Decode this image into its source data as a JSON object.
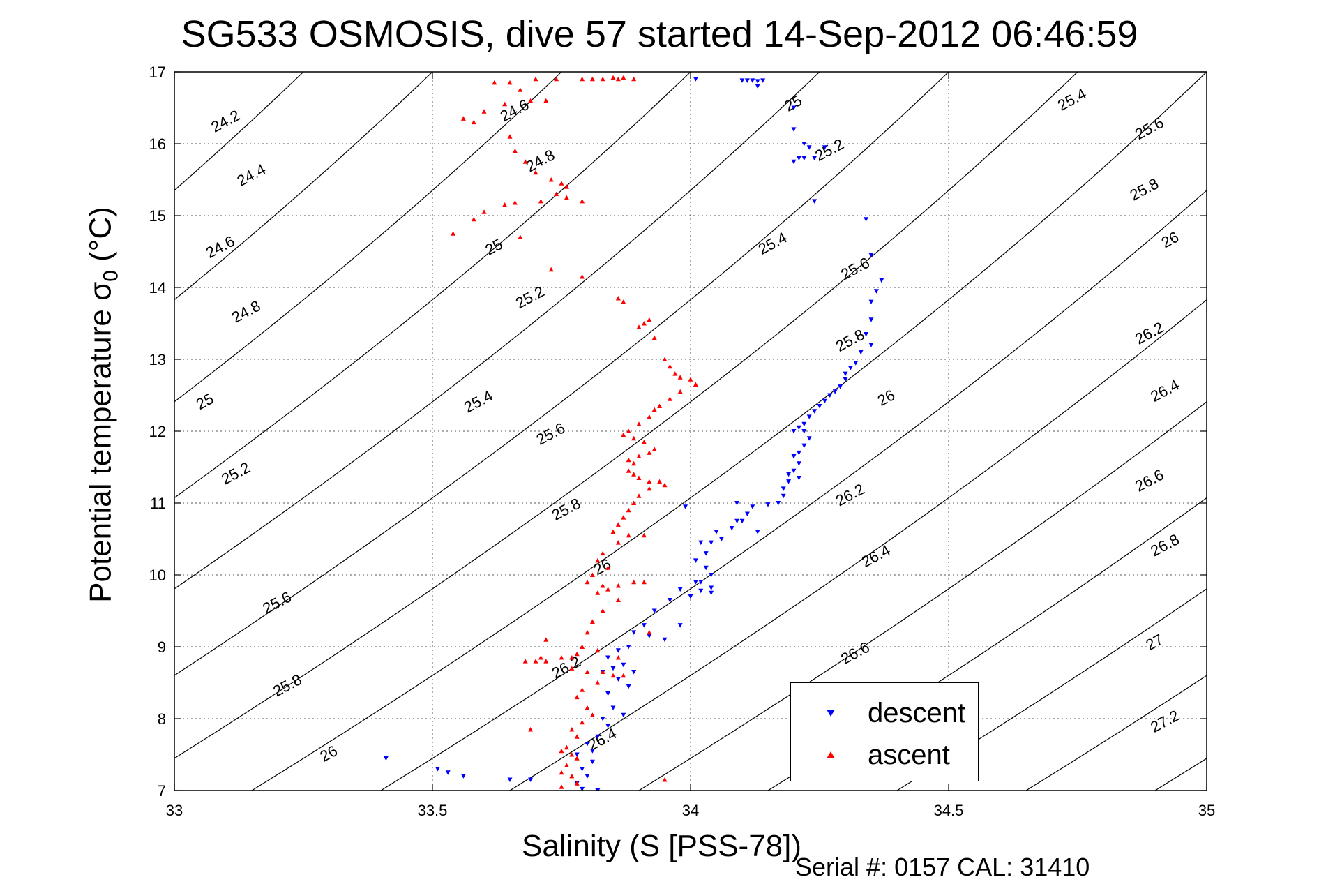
{
  "chart_data": {
    "type": "scatter",
    "title": "SG533 OSMOSIS, dive 57 started 14-Sep-2012 06:46:59",
    "xlabel": "Salinity (S [PSS-78])",
    "ylabel_main": "Potential temperature ",
    "ylabel_sym": "σ",
    "ylabel_sub": "0",
    "ylabel_unit": " (°C)",
    "footer": "Serial #: 0157  CAL: 31410",
    "xlim": [
      33,
      35
    ],
    "ylim": [
      7,
      17
    ],
    "x_ticks": [
      "33",
      "33.5",
      "34",
      "34.5",
      "35"
    ],
    "y_ticks": [
      "7",
      "8",
      "9",
      "10",
      "11",
      "12",
      "13",
      "14",
      "15",
      "16",
      "17"
    ],
    "grid": true,
    "legend_position": "bottom-right",
    "density_contours": {
      "levels": [
        24.2,
        24.4,
        24.6,
        24.8,
        25.0,
        25.2,
        25.4,
        25.6,
        25.8,
        26.0,
        26.2,
        26.4,
        26.6,
        26.8,
        27.0,
        27.2
      ],
      "labels": [
        {
          "text": "24.2",
          "s": 33.1,
          "t": 16.3
        },
        {
          "text": "24.4",
          "s": 33.15,
          "t": 15.55
        },
        {
          "text": "24.6",
          "s": 33.09,
          "t": 14.55
        },
        {
          "text": "24.8",
          "s": 33.14,
          "t": 13.65
        },
        {
          "text": "25",
          "s": 33.06,
          "t": 12.4
        },
        {
          "text": "25.2",
          "s": 33.12,
          "t": 11.4
        },
        {
          "text": "25.6",
          "s": 33.2,
          "t": 9.6
        },
        {
          "text": "25.8",
          "s": 33.22,
          "t": 8.45
        },
        {
          "text": "26",
          "s": 33.3,
          "t": 7.5
        },
        {
          "text": "24.6",
          "s": 33.66,
          "t": 16.45
        },
        {
          "text": "24.8",
          "s": 33.71,
          "t": 15.75
        },
        {
          "text": "25",
          "s": 33.62,
          "t": 14.55
        },
        {
          "text": "25.2",
          "s": 33.69,
          "t": 13.85
        },
        {
          "text": "25.4",
          "s": 33.59,
          "t": 12.4
        },
        {
          "text": "25.6",
          "s": 33.73,
          "t": 11.95
        },
        {
          "text": "25.8",
          "s": 33.76,
          "t": 10.9
        },
        {
          "text": "26",
          "s": 33.83,
          "t": 10.1
        },
        {
          "text": "26.2",
          "s": 33.76,
          "t": 8.7
        },
        {
          "text": "26.4",
          "s": 33.83,
          "t": 7.7
        },
        {
          "text": "25",
          "s": 34.2,
          "t": 16.55
        },
        {
          "text": "25.2",
          "s": 34.27,
          "t": 15.9
        },
        {
          "text": "25.4",
          "s": 34.16,
          "t": 14.6
        },
        {
          "text": "25.6",
          "s": 34.32,
          "t": 14.25
        },
        {
          "text": "25.8",
          "s": 34.31,
          "t": 13.25
        },
        {
          "text": "26",
          "s": 34.38,
          "t": 12.45
        },
        {
          "text": "26.2",
          "s": 34.31,
          "t": 11.1
        },
        {
          "text": "26.4",
          "s": 34.36,
          "t": 10.25
        },
        {
          "text": "26.6",
          "s": 34.32,
          "t": 8.9
        },
        {
          "text": "25.4",
          "s": 34.74,
          "t": 16.6
        },
        {
          "text": "25.6",
          "s": 34.89,
          "t": 16.2
        },
        {
          "text": "25.8",
          "s": 34.88,
          "t": 15.35
        },
        {
          "text": "26",
          "s": 34.93,
          "t": 14.65
        },
        {
          "text": "26.2",
          "s": 34.89,
          "t": 13.35
        },
        {
          "text": "26.4",
          "s": 34.92,
          "t": 12.55
        },
        {
          "text": "26.6",
          "s": 34.89,
          "t": 11.3
        },
        {
          "text": "26.8",
          "s": 34.92,
          "t": 10.4
        },
        {
          "text": "27",
          "s": 34.9,
          "t": 9.05
        },
        {
          "text": "27.2",
          "s": 34.92,
          "t": 7.95
        }
      ]
    },
    "series": [
      {
        "name": "descent",
        "color": "#0000ff",
        "marker": "triangle-down",
        "points": [
          [
            34.01,
            16.9
          ],
          [
            34.1,
            16.88
          ],
          [
            34.11,
            16.88
          ],
          [
            34.12,
            16.88
          ],
          [
            34.13,
            16.87
          ],
          [
            34.14,
            16.88
          ],
          [
            34.13,
            16.8
          ],
          [
            34.2,
            16.5
          ],
          [
            34.2,
            16.2
          ],
          [
            34.22,
            16.0
          ],
          [
            34.23,
            15.95
          ],
          [
            34.2,
            15.75
          ],
          [
            34.22,
            15.8
          ],
          [
            34.24,
            15.8
          ],
          [
            34.24,
            15.2
          ],
          [
            34.34,
            14.95
          ],
          [
            34.35,
            14.45
          ],
          [
            34.37,
            14.1
          ],
          [
            34.36,
            13.95
          ],
          [
            34.35,
            13.8
          ],
          [
            34.35,
            13.55
          ],
          [
            34.34,
            13.35
          ],
          [
            34.35,
            13.2
          ],
          [
            34.33,
            13.1
          ],
          [
            34.32,
            12.95
          ],
          [
            34.31,
            12.88
          ],
          [
            34.3,
            12.8
          ],
          [
            34.3,
            12.72
          ],
          [
            34.29,
            12.62
          ],
          [
            34.28,
            12.55
          ],
          [
            34.27,
            12.5
          ],
          [
            34.26,
            12.42
          ],
          [
            34.25,
            12.35
          ],
          [
            34.24,
            12.28
          ],
          [
            34.23,
            12.2
          ],
          [
            34.22,
            12.1
          ],
          [
            34.21,
            12.05
          ],
          [
            34.22,
            12.0
          ],
          [
            34.2,
            12.0
          ],
          [
            34.23,
            11.9
          ],
          [
            34.22,
            11.8
          ],
          [
            34.21,
            11.7
          ],
          [
            34.2,
            11.65
          ],
          [
            34.21,
            11.55
          ],
          [
            34.2,
            11.45
          ],
          [
            34.19,
            11.4
          ],
          [
            34.21,
            11.35
          ],
          [
            34.19,
            11.3
          ],
          [
            34.18,
            11.2
          ],
          [
            34.18,
            11.1
          ],
          [
            34.17,
            11.0
          ],
          [
            34.15,
            10.98
          ],
          [
            34.12,
            10.95
          ],
          [
            34.11,
            10.85
          ],
          [
            34.09,
            10.75
          ],
          [
            34.08,
            10.65
          ],
          [
            34.05,
            10.6
          ],
          [
            34.06,
            10.5
          ],
          [
            34.04,
            10.45
          ],
          [
            34.02,
            10.45
          ],
          [
            34.03,
            10.3
          ],
          [
            34.01,
            10.2
          ],
          [
            34.03,
            10.1
          ],
          [
            34.04,
            10.0
          ],
          [
            34.01,
            9.9
          ],
          [
            33.98,
            9.8
          ],
          [
            34.02,
            9.78
          ],
          [
            34.04,
            9.75
          ],
          [
            34.0,
            9.7
          ],
          [
            33.96,
            9.65
          ],
          [
            33.93,
            9.5
          ],
          [
            33.91,
            9.3
          ],
          [
            33.89,
            9.2
          ],
          [
            33.92,
            9.15
          ],
          [
            33.88,
            9.0
          ],
          [
            33.86,
            8.95
          ],
          [
            33.84,
            8.85
          ],
          [
            33.87,
            8.75
          ],
          [
            33.85,
            8.7
          ],
          [
            33.89,
            8.65
          ],
          [
            33.83,
            8.65
          ],
          [
            33.86,
            8.55
          ],
          [
            33.88,
            8.45
          ],
          [
            33.84,
            8.35
          ],
          [
            33.85,
            8.15
          ],
          [
            33.87,
            8.05
          ],
          [
            33.83,
            8.0
          ],
          [
            33.84,
            7.9
          ],
          [
            33.82,
            7.75
          ],
          [
            33.8,
            7.65
          ],
          [
            33.81,
            7.55
          ],
          [
            33.78,
            7.5
          ],
          [
            33.81,
            7.4
          ],
          [
            33.79,
            7.3
          ],
          [
            33.8,
            7.2
          ],
          [
            33.78,
            7.1
          ],
          [
            33.79,
            7.02
          ],
          [
            33.82,
            7.0
          ],
          [
            33.53,
            7.25
          ],
          [
            33.51,
            7.3
          ],
          [
            33.56,
            7.2
          ],
          [
            33.65,
            7.15
          ],
          [
            33.69,
            7.15
          ],
          [
            33.41,
            7.45
          ],
          [
            34.26,
            15.95
          ],
          [
            34.21,
            15.8
          ],
          [
            34.09,
            11.0
          ],
          [
            34.13,
            10.6
          ],
          [
            33.99,
            10.95
          ],
          [
            34.1,
            10.75
          ],
          [
            33.95,
            9.1
          ],
          [
            33.98,
            9.3
          ],
          [
            34.04,
            9.82
          ],
          [
            34.02,
            9.9
          ]
        ]
      },
      {
        "name": "ascent",
        "color": "#ff0000",
        "marker": "triangle-up",
        "points": [
          [
            33.79,
            16.9
          ],
          [
            33.81,
            16.9
          ],
          [
            33.83,
            16.9
          ],
          [
            33.85,
            16.92
          ],
          [
            33.86,
            16.9
          ],
          [
            33.87,
            16.92
          ],
          [
            33.89,
            16.9
          ],
          [
            33.74,
            16.9
          ],
          [
            33.7,
            16.9
          ],
          [
            33.65,
            16.85
          ],
          [
            33.62,
            16.85
          ],
          [
            33.67,
            16.75
          ],
          [
            33.69,
            16.6
          ],
          [
            33.72,
            16.6
          ],
          [
            33.64,
            16.55
          ],
          [
            33.6,
            16.45
          ],
          [
            33.56,
            16.35
          ],
          [
            33.58,
            16.3
          ],
          [
            33.65,
            16.1
          ],
          [
            33.66,
            15.9
          ],
          [
            33.68,
            15.75
          ],
          [
            33.7,
            15.6
          ],
          [
            33.73,
            15.5
          ],
          [
            33.75,
            15.45
          ],
          [
            33.76,
            15.4
          ],
          [
            33.74,
            15.3
          ],
          [
            33.76,
            15.25
          ],
          [
            33.79,
            15.2
          ],
          [
            33.71,
            15.2
          ],
          [
            33.66,
            15.18
          ],
          [
            33.64,
            15.15
          ],
          [
            33.6,
            15.05
          ],
          [
            33.58,
            14.95
          ],
          [
            33.54,
            14.75
          ],
          [
            33.67,
            14.7
          ],
          [
            33.73,
            14.25
          ],
          [
            33.79,
            14.15
          ],
          [
            33.86,
            13.85
          ],
          [
            33.87,
            13.8
          ],
          [
            33.91,
            13.5
          ],
          [
            33.9,
            13.45
          ],
          [
            33.92,
            13.55
          ],
          [
            33.93,
            13.3
          ],
          [
            33.95,
            13.0
          ],
          [
            33.96,
            12.9
          ],
          [
            33.97,
            12.8
          ],
          [
            33.98,
            12.75
          ],
          [
            34.0,
            12.72
          ],
          [
            34.01,
            12.65
          ],
          [
            33.98,
            12.55
          ],
          [
            33.96,
            12.45
          ],
          [
            33.94,
            12.35
          ],
          [
            33.93,
            12.3
          ],
          [
            33.92,
            12.2
          ],
          [
            33.9,
            12.1
          ],
          [
            33.88,
            12.0
          ],
          [
            33.87,
            11.95
          ],
          [
            33.89,
            11.9
          ],
          [
            33.91,
            11.85
          ],
          [
            33.93,
            11.75
          ],
          [
            33.92,
            11.7
          ],
          [
            33.9,
            11.65
          ],
          [
            33.88,
            11.6
          ],
          [
            33.89,
            11.55
          ],
          [
            33.88,
            11.45
          ],
          [
            33.89,
            11.4
          ],
          [
            33.9,
            11.35
          ],
          [
            33.92,
            11.3
          ],
          [
            33.94,
            11.3
          ],
          [
            33.95,
            11.25
          ],
          [
            33.92,
            11.2
          ],
          [
            33.9,
            11.1
          ],
          [
            33.89,
            11.0
          ],
          [
            33.88,
            10.9
          ],
          [
            33.87,
            10.8
          ],
          [
            33.86,
            10.7
          ],
          [
            33.85,
            10.6
          ],
          [
            33.88,
            10.55
          ],
          [
            33.91,
            10.55
          ],
          [
            33.86,
            10.45
          ],
          [
            33.83,
            10.3
          ],
          [
            33.82,
            10.2
          ],
          [
            33.84,
            10.1
          ],
          [
            33.81,
            10.0
          ],
          [
            33.8,
            9.9
          ],
          [
            33.83,
            9.85
          ],
          [
            33.86,
            9.85
          ],
          [
            33.89,
            9.9
          ],
          [
            33.91,
            9.9
          ],
          [
            33.84,
            9.8
          ],
          [
            33.82,
            9.75
          ],
          [
            33.86,
            9.65
          ],
          [
            33.83,
            9.5
          ],
          [
            33.81,
            9.35
          ],
          [
            33.8,
            9.2
          ],
          [
            33.79,
            9.0
          ],
          [
            33.82,
            8.95
          ],
          [
            33.78,
            8.9
          ],
          [
            33.77,
            8.85
          ],
          [
            33.75,
            8.85
          ],
          [
            33.72,
            8.8
          ],
          [
            33.7,
            8.8
          ],
          [
            33.68,
            8.8
          ],
          [
            33.77,
            8.7
          ],
          [
            33.8,
            8.65
          ],
          [
            33.83,
            8.65
          ],
          [
            33.85,
            8.6
          ],
          [
            33.87,
            8.6
          ],
          [
            33.82,
            8.5
          ],
          [
            33.79,
            8.4
          ],
          [
            33.78,
            8.3
          ],
          [
            33.8,
            8.15
          ],
          [
            33.81,
            8.05
          ],
          [
            33.79,
            7.95
          ],
          [
            33.77,
            7.85
          ],
          [
            33.78,
            7.75
          ],
          [
            33.76,
            7.6
          ],
          [
            33.75,
            7.55
          ],
          [
            33.77,
            7.5
          ],
          [
            33.78,
            7.45
          ],
          [
            33.76,
            7.35
          ],
          [
            33.75,
            7.25
          ],
          [
            33.77,
            7.2
          ],
          [
            33.78,
            7.1
          ],
          [
            33.75,
            7.05
          ],
          [
            33.95,
            7.15
          ],
          [
            33.72,
            9.1
          ],
          [
            33.71,
            8.85
          ],
          [
            33.69,
            7.85
          ],
          [
            33.86,
            8.85
          ],
          [
            33.92,
            9.2
          ]
        ]
      }
    ]
  }
}
